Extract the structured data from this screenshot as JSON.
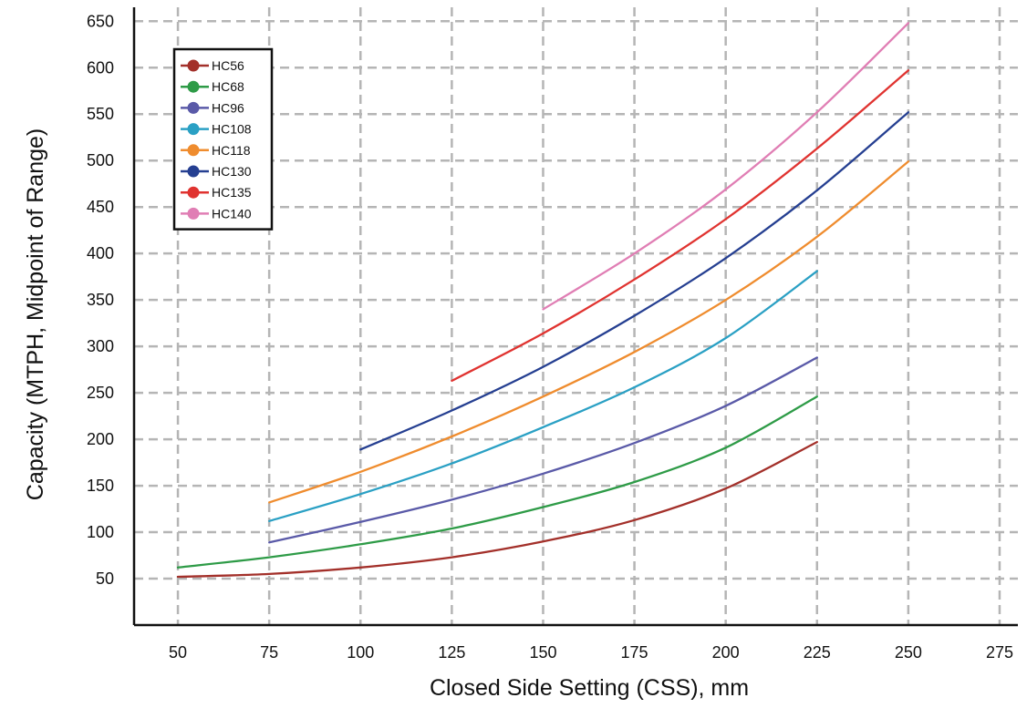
{
  "chart_data": {
    "type": "line",
    "xlabel": "Closed Side Setting (CSS), mm",
    "ylabel": "Capacity (MTPH, Midpoint of Range)",
    "xlim": [
      38,
      280
    ],
    "ylim": [
      0,
      665
    ],
    "xticks": [
      50,
      75,
      100,
      125,
      150,
      175,
      200,
      225,
      250,
      275
    ],
    "yticks": [
      50,
      100,
      150,
      200,
      250,
      300,
      350,
      400,
      450,
      500,
      550,
      600,
      650
    ],
    "grid": true,
    "grid_style": "dashed",
    "legend_position": "top-left",
    "series": [
      {
        "name": "HC56",
        "color": "#a3302a",
        "x": [
          50,
          75,
          100,
          125,
          150,
          175,
          200,
          225
        ],
        "y": [
          52,
          55,
          62,
          73,
          90,
          113,
          147,
          197
        ]
      },
      {
        "name": "HC68",
        "color": "#2e9b47",
        "x": [
          50,
          75,
          100,
          125,
          150,
          175,
          200,
          225
        ],
        "y": [
          62,
          73,
          87,
          104,
          127,
          154,
          191,
          246
        ]
      },
      {
        "name": "HC96",
        "color": "#5a5aa8",
        "x": [
          75,
          100,
          125,
          150,
          175,
          200,
          225
        ],
        "y": [
          89,
          111,
          135,
          163,
          196,
          236,
          288
        ]
      },
      {
        "name": "HC108",
        "color": "#2aa0c4",
        "x": [
          75,
          100,
          125,
          150,
          175,
          200,
          225
        ],
        "y": [
          112,
          141,
          174,
          213,
          256,
          309,
          381
        ]
      },
      {
        "name": "HC118",
        "color": "#ef8c2e",
        "x": [
          75,
          100,
          125,
          150,
          175,
          200,
          225,
          250
        ],
        "y": [
          132,
          165,
          203,
          246,
          294,
          350,
          418,
          499
        ]
      },
      {
        "name": "HC130",
        "color": "#253f91",
        "x": [
          100,
          125,
          150,
          175,
          200,
          225,
          250
        ],
        "y": [
          189,
          231,
          278,
          333,
          395,
          468,
          552
        ]
      },
      {
        "name": "HC135",
        "color": "#e03330",
        "x": [
          125,
          150,
          175,
          200,
          225,
          250
        ],
        "y": [
          263,
          314,
          372,
          437,
          513,
          597
        ]
      },
      {
        "name": "HC140",
        "color": "#e07eb4",
        "x": [
          150,
          175,
          200,
          225,
          250
        ],
        "y": [
          340,
          400,
          469,
          552,
          648
        ]
      }
    ]
  }
}
